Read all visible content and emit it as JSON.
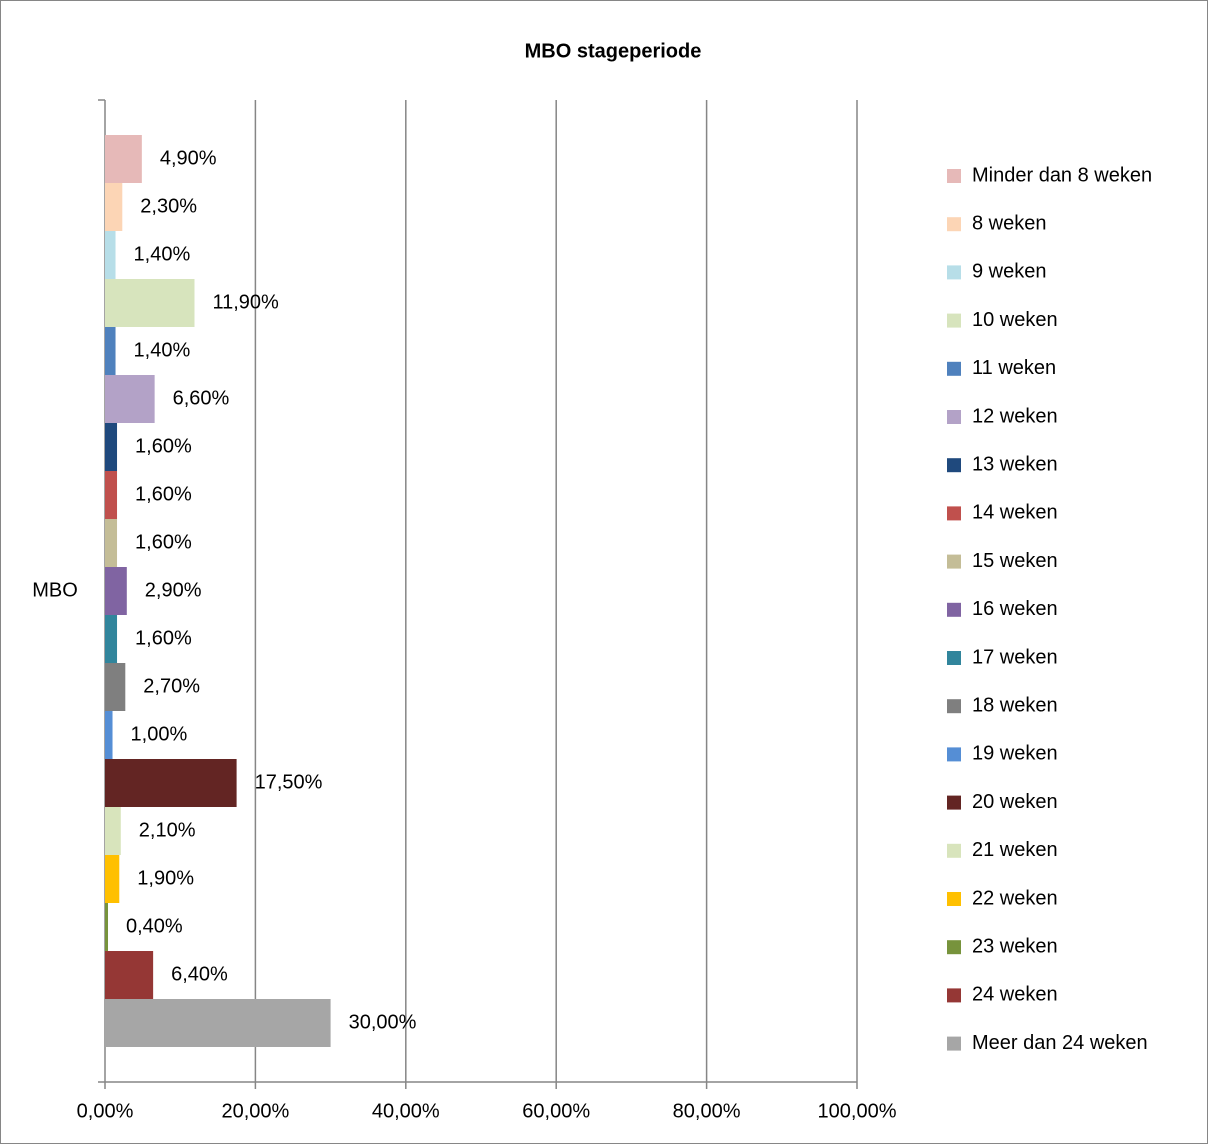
{
  "chart_data": {
    "type": "bar",
    "orientation": "horizontal",
    "title": "MBO stageperiode",
    "categories": [
      "MBO"
    ],
    "series": [
      {
        "name": "Minder dan 8 weken",
        "color": "#e6b9b8",
        "values": [
          4.9
        ],
        "value_labels": [
          "4,90%"
        ]
      },
      {
        "name": "8 weken",
        "color": "#fcd5b5",
        "values": [
          2.3
        ],
        "value_labels": [
          "2,30%"
        ]
      },
      {
        "name": "9 weken",
        "color": "#b7dee8",
        "values": [
          1.4
        ],
        "value_labels": [
          "1,40%"
        ]
      },
      {
        "name": "10 weken",
        "color": "#d7e4bd",
        "values": [
          11.9
        ],
        "value_labels": [
          "11,90%"
        ]
      },
      {
        "name": "11 weken",
        "color": "#4f81bd",
        "values": [
          1.4
        ],
        "value_labels": [
          "1,40%"
        ]
      },
      {
        "name": "12 weken",
        "color": "#b3a2c7",
        "values": [
          6.6
        ],
        "value_labels": [
          "6,60%"
        ]
      },
      {
        "name": "13 weken",
        "color": "#1f497d",
        "values": [
          1.6
        ],
        "value_labels": [
          "1,60%"
        ]
      },
      {
        "name": "14 weken",
        "color": "#c0504d",
        "values": [
          1.6
        ],
        "value_labels": [
          "1,60%"
        ]
      },
      {
        "name": "15 weken",
        "color": "#c4bd97",
        "values": [
          1.6
        ],
        "value_labels": [
          "1,60%"
        ]
      },
      {
        "name": "16 weken",
        "color": "#8064a2",
        "values": [
          2.9
        ],
        "value_labels": [
          "2,90%"
        ]
      },
      {
        "name": "17 weken",
        "color": "#31859c",
        "values": [
          1.6
        ],
        "value_labels": [
          "1,60%"
        ]
      },
      {
        "name": "18 weken",
        "color": "#7f7f7f",
        "values": [
          2.7
        ],
        "value_labels": [
          "2,70%"
        ]
      },
      {
        "name": "19 weken",
        "color": "#558ed5",
        "values": [
          1.0
        ],
        "value_labels": [
          "1,00%"
        ]
      },
      {
        "name": "20 weken",
        "color": "#632523",
        "values": [
          17.5
        ],
        "value_labels": [
          "17,50%"
        ]
      },
      {
        "name": "21 weken",
        "color": "#d8e4bc",
        "values": [
          2.1
        ],
        "value_labels": [
          "2,10%"
        ]
      },
      {
        "name": "22 weken",
        "color": "#ffc000",
        "values": [
          1.9
        ],
        "value_labels": [
          "1,90%"
        ]
      },
      {
        "name": "23 weken",
        "color": "#77933c",
        "values": [
          0.4
        ],
        "value_labels": [
          "0,40%"
        ]
      },
      {
        "name": "24 weken",
        "color": "#953735",
        "values": [
          6.4
        ],
        "value_labels": [
          "6,40%"
        ]
      },
      {
        "name": "Meer dan 24 weken",
        "color": "#a6a6a6",
        "values": [
          30.0
        ],
        "value_labels": [
          "30,00%"
        ]
      }
    ],
    "xlim": [
      0,
      100
    ],
    "xticks": [
      {
        "value": 0,
        "label": "0,00%"
      },
      {
        "value": 20,
        "label": "20,00%"
      },
      {
        "value": 40,
        "label": "40,00%"
      },
      {
        "value": 60,
        "label": "60,00%"
      },
      {
        "value": 80,
        "label": "80,00%"
      },
      {
        "value": 100,
        "label": "100,00%"
      }
    ],
    "grid": true,
    "legend": "right"
  }
}
